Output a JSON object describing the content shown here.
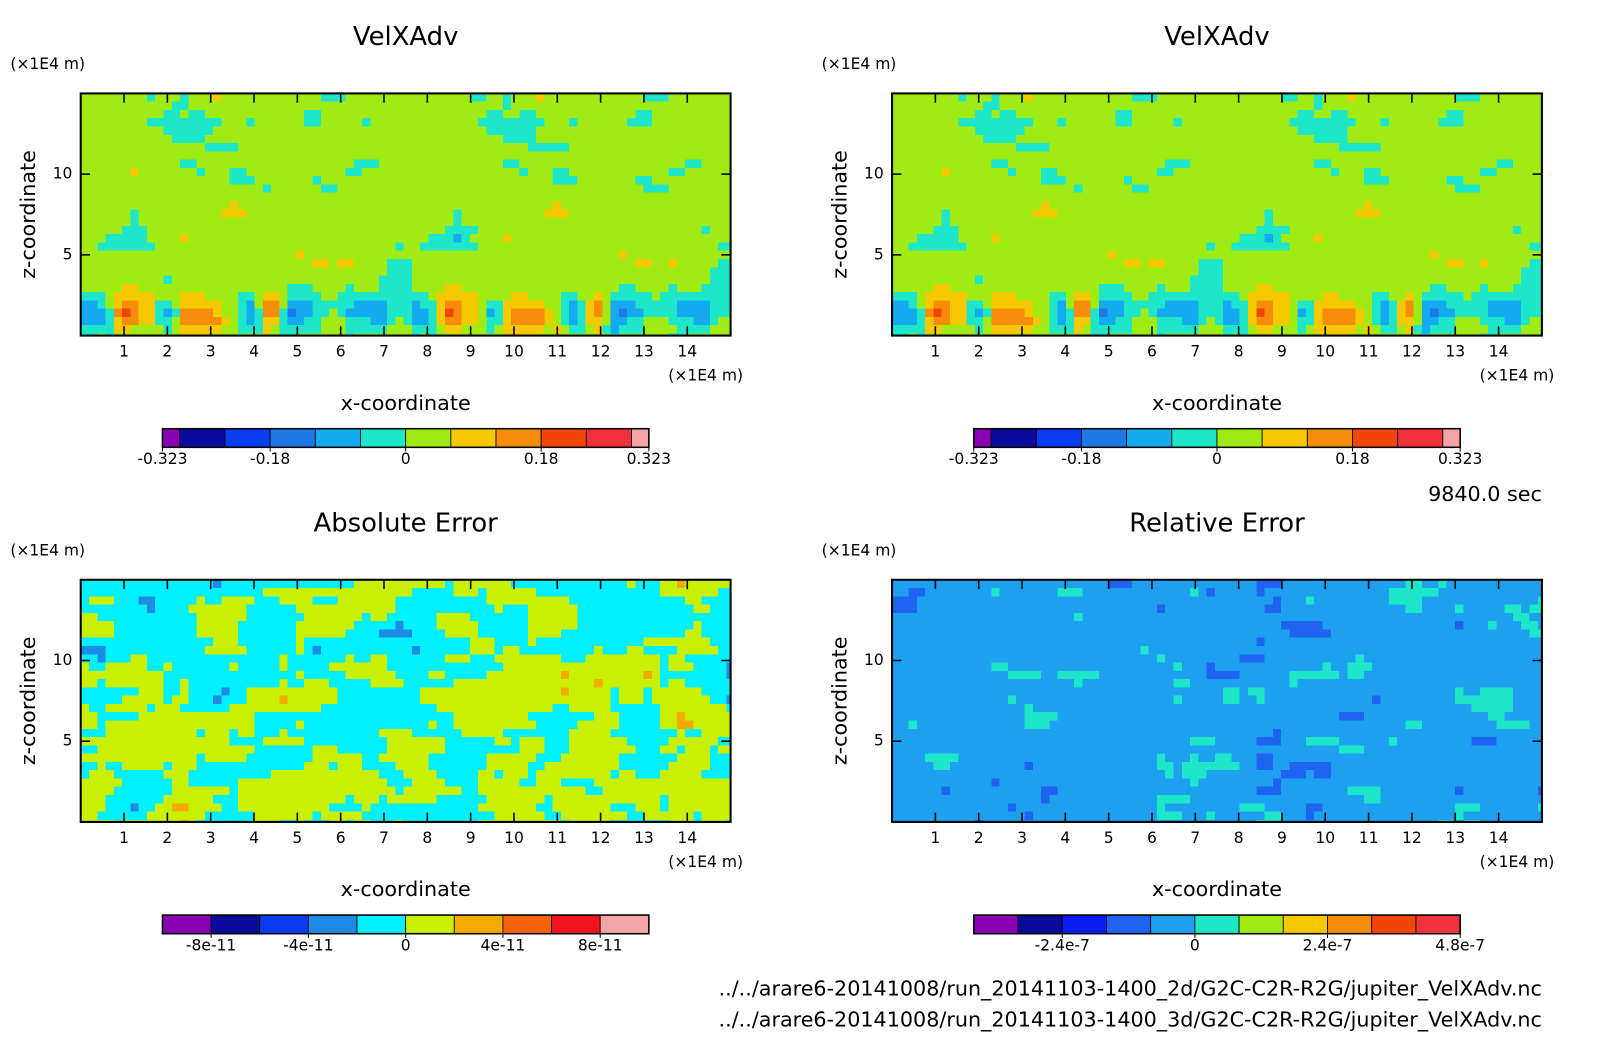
{
  "chart_data": [
    {
      "type": "contour",
      "title": "VelXAdv",
      "xlabel": "x-coordinate",
      "ylabel": "z-coordinate",
      "xunit": "(×1E4 m)",
      "yunit": "(×1E4 m)",
      "xlim": [
        0,
        15
      ],
      "ylim": [
        0,
        15
      ],
      "xticks": [
        1,
        2,
        3,
        4,
        5,
        6,
        7,
        8,
        9,
        10,
        11,
        12,
        13,
        14
      ],
      "yticks": [
        5,
        10
      ],
      "colorbar": {
        "lim": [
          -0.323,
          0.323
        ],
        "levels": [
          -0.3,
          -0.24,
          -0.18,
          -0.12,
          -0.06,
          0,
          0.06,
          0.12,
          0.18,
          0.24,
          0.3
        ],
        "colors": [
          "#8a00b4",
          "#0a0a9c",
          "#0a3cf0",
          "#1e78e6",
          "#14aaf0",
          "#1ee6c8",
          "#a0eb14",
          "#f5c800",
          "#f58c0a",
          "#f0460a",
          "#f0323c",
          "#f5a5a5"
        ],
        "ticks": [
          -0.323,
          -0.18,
          0,
          0.18,
          0.323
        ]
      }
    },
    {
      "type": "contour",
      "title": "VelXAdv",
      "xlabel": "x-coordinate",
      "ylabel": "z-coordinate",
      "xunit": "(×1E4 m)",
      "yunit": "(×1E4 m)",
      "xlim": [
        0,
        15
      ],
      "ylim": [
        0,
        15
      ],
      "xticks": [
        1,
        2,
        3,
        4,
        5,
        6,
        7,
        8,
        9,
        10,
        11,
        12,
        13,
        14
      ],
      "yticks": [
        5,
        10
      ],
      "colorbar": {
        "lim": [
          -0.323,
          0.323
        ],
        "levels": [
          -0.3,
          -0.24,
          -0.18,
          -0.12,
          -0.06,
          0,
          0.06,
          0.12,
          0.18,
          0.24,
          0.3
        ],
        "colors": [
          "#8a00b4",
          "#0a0a9c",
          "#0a3cf0",
          "#1e78e6",
          "#14aaf0",
          "#1ee6c8",
          "#a0eb14",
          "#f5c800",
          "#f58c0a",
          "#f0460a",
          "#f0323c",
          "#f5a5a5"
        ],
        "ticks": [
          -0.323,
          -0.18,
          0,
          0.18,
          0.323
        ]
      }
    },
    {
      "type": "contour",
      "title": "Absolute Error",
      "xlabel": "x-coordinate",
      "ylabel": "z-coordinate",
      "xunit": "(×1E4 m)",
      "yunit": "(×1E4 m)",
      "xlim": [
        0,
        15
      ],
      "ylim": [
        0,
        15
      ],
      "xticks": [
        1,
        2,
        3,
        4,
        5,
        6,
        7,
        8,
        9,
        10,
        11,
        12,
        13,
        14
      ],
      "yticks": [
        5,
        10
      ],
      "colorbar": {
        "lim": [
          -1e-10,
          1e-10
        ],
        "levels": [
          -8e-11,
          -6e-11,
          -4e-11,
          -2e-11,
          0,
          2e-11,
          4e-11,
          6e-11,
          8e-11
        ],
        "colors": [
          "#8a00b4",
          "#0a0a9c",
          "#0a3cf0",
          "#1e8ce6",
          "#00f0ff",
          "#c8f000",
          "#f5aa00",
          "#f5640a",
          "#f0141e",
          "#f5a5a5"
        ],
        "ticks": [
          -8e-11,
          -4e-11,
          0,
          4e-11,
          8e-11
        ]
      }
    },
    {
      "type": "contour",
      "title": "Relative Error",
      "xlabel": "x-coordinate",
      "ylabel": "z-coordinate",
      "xunit": "(×1E4 m)",
      "yunit": "(×1E4 m)",
      "xlim": [
        0,
        15
      ],
      "ylim": [
        0,
        15
      ],
      "xticks": [
        1,
        2,
        3,
        4,
        5,
        6,
        7,
        8,
        9,
        10,
        11,
        12,
        13,
        14
      ],
      "yticks": [
        5,
        10
      ],
      "colorbar": {
        "lim": [
          -4e-07,
          4.8e-07
        ],
        "levels": [
          -3.2e-07,
          -2.4e-07,
          -1.6e-07,
          -8e-08,
          0,
          8e-08,
          1.6e-07,
          2.4e-07,
          3.2e-07,
          4e-07
        ],
        "colors": [
          "#8a00b4",
          "#0a0a9c",
          "#0a1ef0",
          "#1e64f0",
          "#1ea0f0",
          "#1ee6c8",
          "#a0eb14",
          "#f5c800",
          "#f58c0a",
          "#f0460a",
          "#f0323c"
        ],
        "ticks": [
          -2.4e-07,
          0,
          2.4e-07,
          4.8e-07
        ]
      }
    }
  ],
  "time_label": "9840.0 sec",
  "files": [
    "../../arare6-20141008/run_20141103-1400_2d/G2C-C2R-R2G/jupiter_VelXAdv.nc",
    "../../arare6-20141008/run_20141103-1400_3d/G2C-C2R-R2G/jupiter_VelXAdv.nc"
  ]
}
